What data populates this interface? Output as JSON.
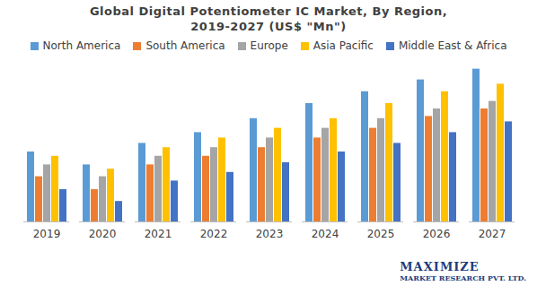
{
  "chart_data": {
    "type": "bar",
    "title": "Global Digital Potentiometer IC Market, By Region, 2019-2027 (US$ \"Mn\")",
    "categories": [
      "2019",
      "2020",
      "2021",
      "2022",
      "2023",
      "2024",
      "2025",
      "2026",
      "2027"
    ],
    "series": [
      {
        "name": "North America",
        "color": "#5b9bd5",
        "values": [
          65,
          53,
          73,
          83,
          96,
          110,
          121,
          132,
          142
        ]
      },
      {
        "name": "South America",
        "color": "#ed7d31",
        "values": [
          42,
          30,
          53,
          61,
          69,
          78,
          87,
          98,
          105
        ]
      },
      {
        "name": "Europe",
        "color": "#a5a5a5",
        "values": [
          53,
          42,
          61,
          69,
          78,
          87,
          96,
          105,
          112
        ]
      },
      {
        "name": "Asia Pacific",
        "color": "#ffc000",
        "values": [
          61,
          49,
          69,
          78,
          87,
          96,
          110,
          121,
          128
        ]
      },
      {
        "name": "Middle East & Africa",
        "color": "#4472c4",
        "values": [
          30,
          19,
          38,
          46,
          55,
          65,
          73,
          83,
          93
        ]
      }
    ],
    "ylim": [
      0,
      150
    ],
    "tick_labels": "x",
    "legend": "top",
    "annotations": [
      "MAXIMIZE",
      "MARKET RESEARCH PVT. LTD."
    ]
  }
}
